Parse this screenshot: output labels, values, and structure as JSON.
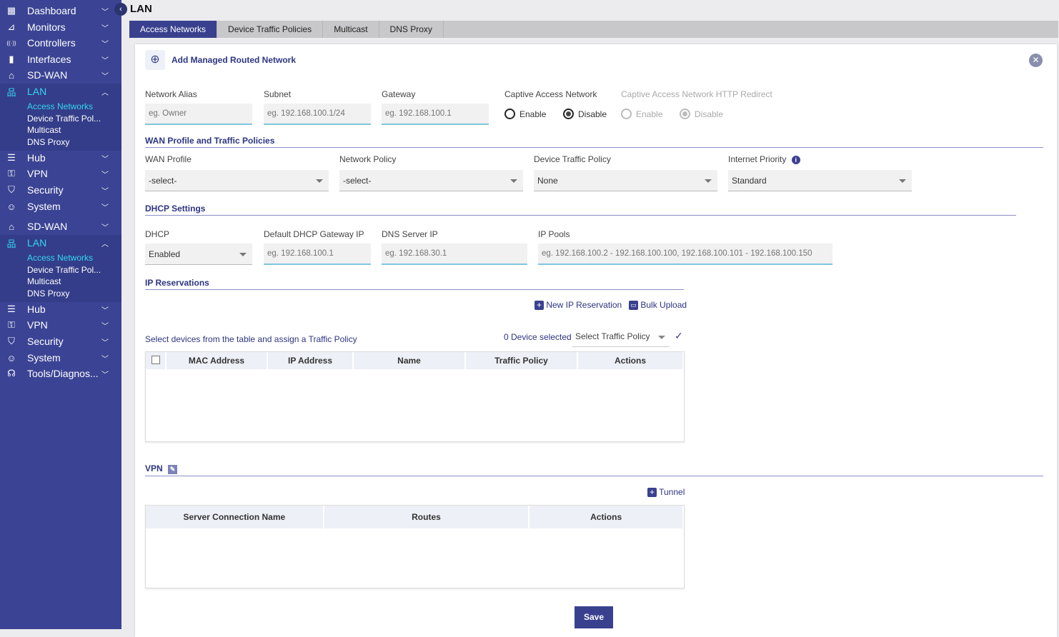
{
  "sidebar": {
    "items": [
      {
        "label": "Dashboard",
        "icon": "dashboard-icon"
      },
      {
        "label": "Monitors",
        "icon": "monitor-icon"
      },
      {
        "label": "Controllers",
        "icon": "antenna-icon"
      },
      {
        "label": "Interfaces",
        "icon": "bar-chart-icon"
      },
      {
        "label": "SD-WAN",
        "icon": "router-icon"
      },
      {
        "label": "LAN",
        "icon": "network-icon"
      },
      {
        "label": "Hub",
        "icon": "sliders-icon"
      },
      {
        "label": "VPN",
        "icon": "key-icon"
      },
      {
        "label": "Security",
        "icon": "shield-icon"
      },
      {
        "label": "System",
        "icon": "user-gear-icon"
      },
      {
        "label": "SD-WAN",
        "icon": "router-icon"
      },
      {
        "label": "LAN",
        "icon": "network-icon"
      },
      {
        "label": "Hub",
        "icon": "sliders-icon"
      },
      {
        "label": "VPN",
        "icon": "key-icon"
      },
      {
        "label": "Security",
        "icon": "shield-icon"
      },
      {
        "label": "System",
        "icon": "user-gear-icon"
      },
      {
        "label": "Tools/Diagnos...",
        "icon": "headset-icon"
      }
    ],
    "lan_sub": [
      "Access Networks",
      "Device Traffic Pol...",
      "Multicast",
      "DNS Proxy"
    ]
  },
  "header": {
    "title": "LAN"
  },
  "tabs": [
    "Access Networks",
    "Device Traffic Policies",
    "Multicast",
    "DNS Proxy"
  ],
  "form": {
    "title": "Add Managed Routed Network",
    "network_alias": {
      "label": "Network Alias",
      "placeholder": "eg. Owner"
    },
    "subnet": {
      "label": "Subnet",
      "placeholder": "eg. 192.168.100.1/24"
    },
    "gateway": {
      "label": "Gateway",
      "placeholder": "eg. 192.168.100.1"
    },
    "captive": {
      "label": "Captive Access Network",
      "enable": "Enable",
      "disable": "Disable",
      "selected": "Disable"
    },
    "captive_redirect": {
      "label": "Captive Access Network HTTP Redirect",
      "enable": "Enable",
      "disable": "Disable",
      "selected": "Disable",
      "disabled": true
    },
    "wan_section": "WAN Profile and Traffic Policies",
    "wan_profile": {
      "label": "WAN Profile",
      "value": "-select-"
    },
    "network_policy": {
      "label": "Network Policy",
      "value": "-select-"
    },
    "device_traffic_policy": {
      "label": "Device Traffic Policy",
      "value": "None"
    },
    "internet_priority": {
      "label": "Internet Priority",
      "value": "Standard"
    },
    "dhcp_section": "DHCP Settings",
    "dhcp": {
      "label": "DHCP",
      "value": "Enabled"
    },
    "dhcp_gateway": {
      "label": "Default DHCP Gateway IP",
      "placeholder": "eg. 192.168.100.1"
    },
    "dns_server": {
      "label": "DNS Server IP",
      "placeholder": "eg. 192.168.30.1"
    },
    "ip_pools": {
      "label": "IP Pools",
      "placeholder": "eg. 192.168.100.2 - 192.168.100.100, 192.168.100.101 - 192.168.100.150"
    },
    "ipres_section": "IP Reservations",
    "new_ip_reservation": "New IP Reservation",
    "bulk_upload": "Bulk Upload",
    "assign_hint": "Select devices from the table and assign a Traffic Policy",
    "device_selected": "0 Device selected",
    "select_traffic_policy": "Select Traffic Policy",
    "ipres_columns": [
      "MAC Address",
      "IP Address",
      "Name",
      "Traffic Policy",
      "Actions"
    ],
    "vpn_section": "VPN",
    "tunnel": "Tunnel",
    "vpn_columns": [
      "Server Connection Name",
      "Routes",
      "Actions"
    ],
    "save": "Save"
  },
  "colors": {
    "sidebar": "#3b4494",
    "accent": "#39418f",
    "active_text": "#33d6f0"
  }
}
